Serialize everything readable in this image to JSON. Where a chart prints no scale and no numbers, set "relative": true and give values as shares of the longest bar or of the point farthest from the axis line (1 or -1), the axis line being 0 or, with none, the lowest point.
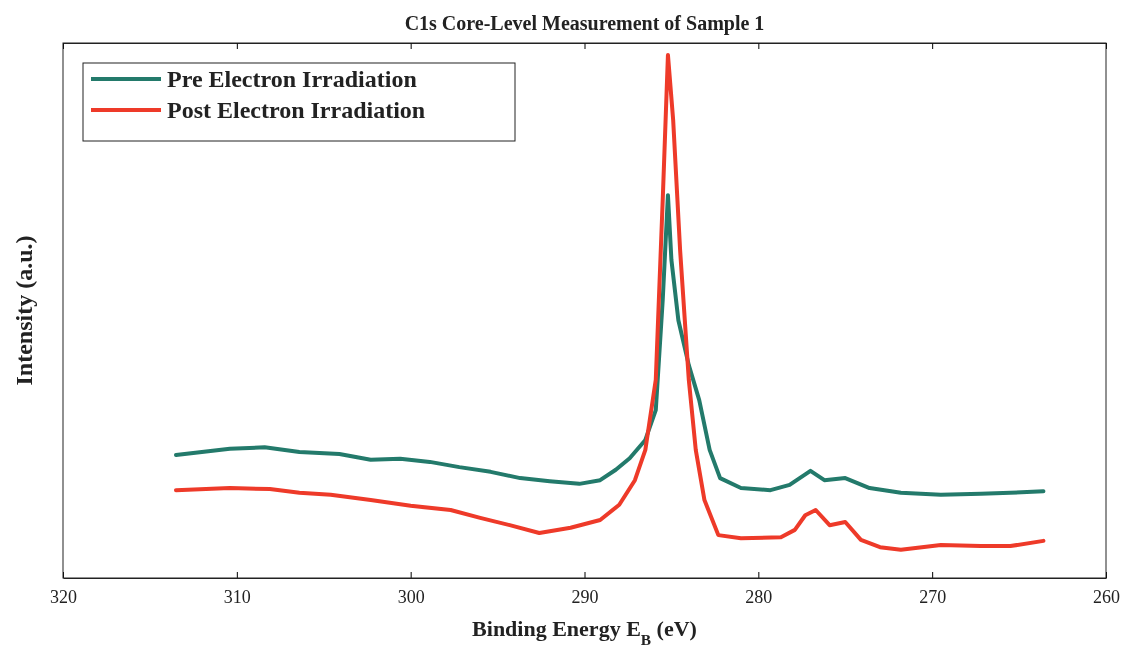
{
  "chart_data": {
    "type": "line",
    "title": "C1s Core-Level Measurement of Sample 1",
    "xlabel": "Binding Energy E$_{B}$ (eV)",
    "ylabel": "Intensity (a.u.)",
    "relative": true,
    "xlim": [
      320,
      260
    ],
    "xticks": [
      320,
      310,
      300,
      290,
      280,
      270,
      260
    ],
    "grid": false,
    "legend": "top left",
    "line_style": "solid",
    "marker": "none",
    "series": [
      {
        "name": "Pre Electron Irradiation",
        "color": "#237a6b",
        "x": [
          313.5,
          310.4,
          308.4,
          306.4,
          304.1,
          302.3,
          300.6,
          298.9,
          297.2,
          295.4,
          293.7,
          292.0,
          290.3,
          289.1,
          288.2,
          287.4,
          286.5,
          285.9,
          285.5,
          285.2,
          285.0,
          284.6,
          284.0,
          283.4,
          282.8,
          282.2,
          281.0,
          279.3,
          278.2,
          277.0,
          276.2,
          275.0,
          273.6,
          271.8,
          269.5,
          267.2,
          265.5,
          263.6
        ],
        "values": [
          0.235,
          0.247,
          0.25,
          0.241,
          0.237,
          0.226,
          0.228,
          0.222,
          0.212,
          0.203,
          0.191,
          0.185,
          0.18,
          0.187,
          0.207,
          0.229,
          0.264,
          0.321,
          0.532,
          0.732,
          0.608,
          0.493,
          0.407,
          0.34,
          0.245,
          0.191,
          0.172,
          0.168,
          0.178,
          0.205,
          0.187,
          0.191,
          0.172,
          0.163,
          0.159,
          0.161,
          0.163,
          0.166
        ]
      },
      {
        "name": "Post Electron Irradiation",
        "color": "#ee3a29",
        "x": [
          313.5,
          310.4,
          308.1,
          306.4,
          304.6,
          302.3,
          300.0,
          297.7,
          296.0,
          294.3,
          292.6,
          290.8,
          289.1,
          288.0,
          287.1,
          286.5,
          285.9,
          285.5,
          285.2,
          284.9,
          284.5,
          284.0,
          283.6,
          283.1,
          282.3,
          281.0,
          278.7,
          277.9,
          277.3,
          276.7,
          275.9,
          275.0,
          274.1,
          273.0,
          271.8,
          269.5,
          267.2,
          265.5,
          263.6
        ],
        "values": [
          0.168,
          0.172,
          0.17,
          0.163,
          0.159,
          0.149,
          0.138,
          0.13,
          0.115,
          0.101,
          0.086,
          0.096,
          0.111,
          0.14,
          0.187,
          0.245,
          0.379,
          0.723,
          1,
          0.876,
          0.627,
          0.379,
          0.245,
          0.149,
          0.082,
          0.076,
          0.078,
          0.092,
          0.12,
          0.13,
          0.101,
          0.107,
          0.073,
          0.059,
          0.054,
          0.063,
          0.061,
          0.061,
          0.071
        ]
      }
    ]
  }
}
